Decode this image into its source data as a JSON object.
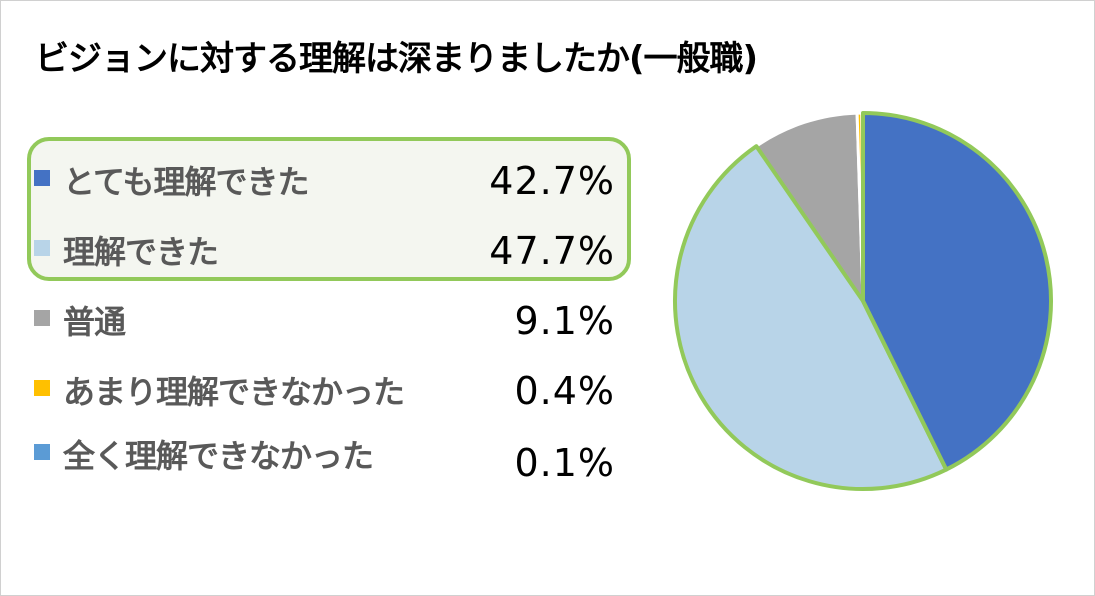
{
  "chart_data": {
    "type": "pie",
    "title": "ビジョンに対する理解は深まりましたか(一般職)",
    "categories": [
      "とても理解できた",
      "理解できた",
      "普通",
      "あまり理解できなかった",
      "全く理解できなかった"
    ],
    "values": [
      42.7,
      47.7,
      9.1,
      0.4,
      0.1
    ],
    "value_labels": [
      "42.7%",
      "47.7%",
      "9.1%",
      "0.4%",
      "0.1%"
    ],
    "colors": [
      "#4472c4",
      "#b8d4e8",
      "#a5a5a5",
      "#ffc000",
      "#5b9bd5"
    ],
    "highlight_color": "#92c95a",
    "highlighted_categories": [
      "とても理解できた",
      "理解できた"
    ],
    "legend_position": "left",
    "start_angle_deg": 0,
    "direction": "clockwise"
  }
}
